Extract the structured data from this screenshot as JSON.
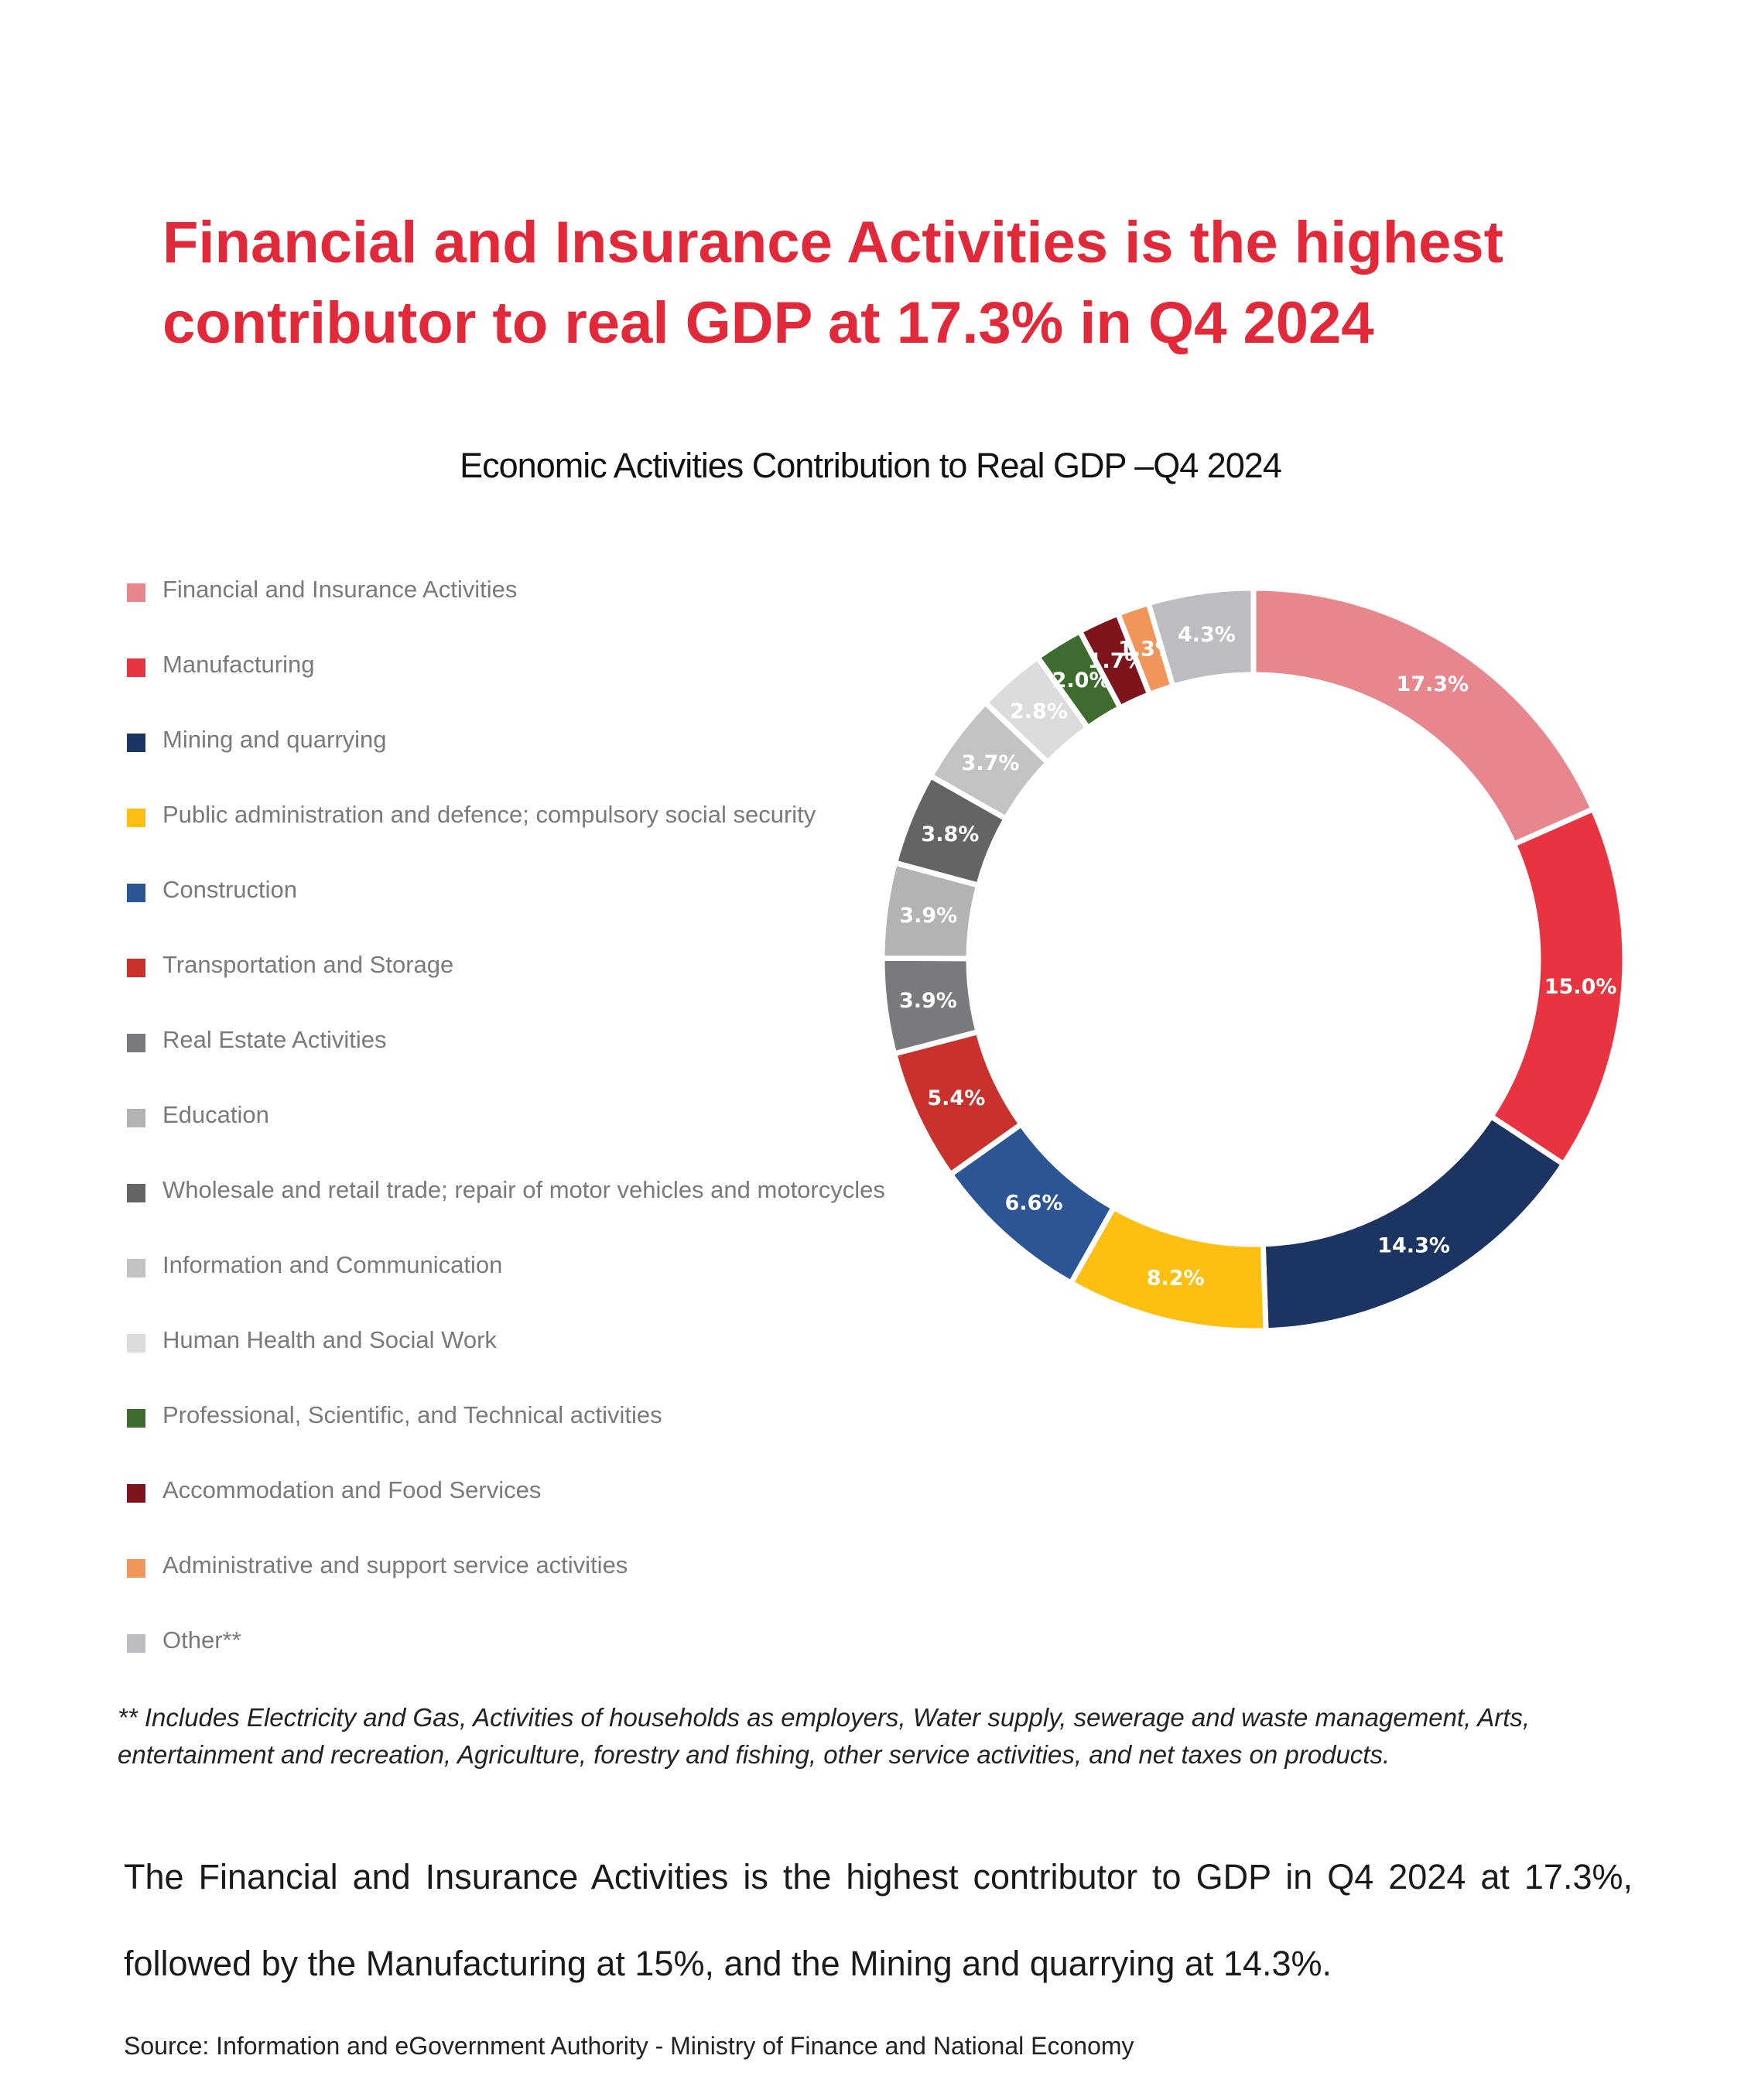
{
  "headline": "Financial and Insurance Activities is the highest contributor to real GDP at 17.3% in Q4 2024",
  "chart_data": {
    "type": "pie",
    "title": "Economic Activities Contribution to Real GDP –Q4 2024",
    "legend_position": "left",
    "categories": [
      "Financial and Insurance Activities",
      "Manufacturing",
      "Mining and quarrying",
      "Public administration and defence; compulsory social security",
      "Construction",
      "Transportation and Storage",
      "Real Estate Activities",
      "Education",
      "Wholesale and retail trade; repair of motor vehicles and motorcycles",
      "Information and Communication",
      "Human Health and Social Work",
      "Professional, Scientific, and Technical activities",
      "Accommodation and Food Services",
      "Administrative and support service activities",
      "Other**"
    ],
    "values": [
      17.3,
      15.0,
      14.3,
      8.2,
      6.6,
      5.4,
      3.9,
      3.9,
      3.8,
      3.7,
      2.8,
      2.0,
      1.7,
      1.3,
      4.3
    ],
    "labels": [
      "17.3%",
      "15.0%",
      "14.3%",
      "8.2%",
      "6.6%",
      "5.4%",
      "3.9%",
      "3.9%",
      "3.8%",
      "3.7%",
      "2.8%",
      "2.0%",
      "1.7%",
      "1.3%",
      "4.3%"
    ],
    "colors": [
      "#e8868d",
      "#e83440",
      "#1b3461",
      "#fcbf12",
      "#2c5596",
      "#c9322c",
      "#797a7e",
      "#b3b3b5",
      "#636466",
      "#c2c3c5",
      "#dcdcde",
      "#3e6b2e",
      "#7e151c",
      "#f0965a",
      "#bcbdc0"
    ]
  },
  "footnote": "** Includes Electricity and Gas, Activities of households as employers, Water supply, sewerage and waste management, Arts, entertainment and recreation, Agriculture, forestry and fishing, other service activities, and net taxes on products.",
  "summary": "The Financial and Insurance Activities is the highest contributor to GDP in Q4 2024 at 17.3%, followed by the Manufacturing at 15%, and the Mining and quarrying at 14.3%.",
  "source": "Source: Information and eGovernment Authority - Ministry of Finance and National Economy"
}
